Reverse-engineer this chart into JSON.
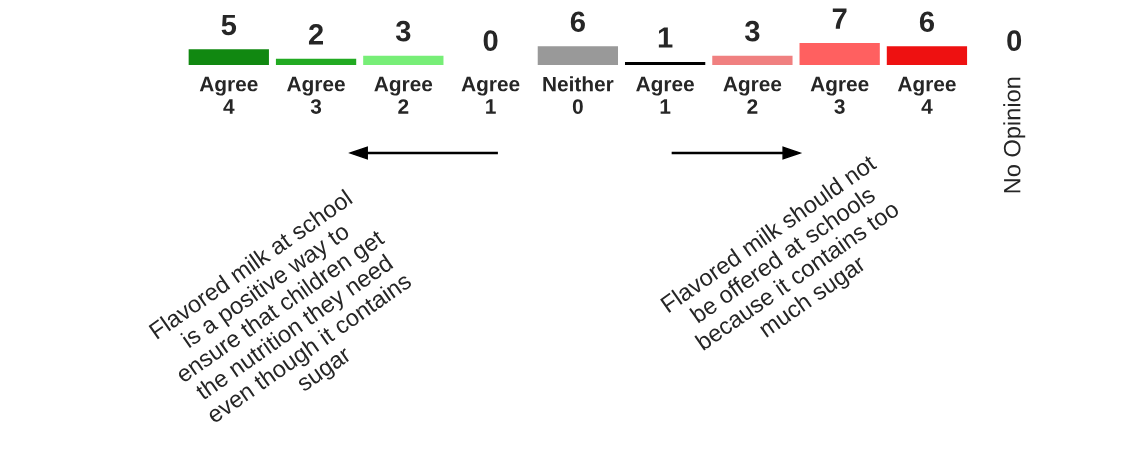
{
  "chart_data": {
    "type": "bar",
    "categories": [
      "Agree\n4",
      "Agree\n3",
      "Agree\n2",
      "Agree\n1",
      "Neither\n0",
      "Agree\n1",
      "Agree\n2",
      "Agree\n3",
      "Agree\n4",
      "No Opinion"
    ],
    "values": [
      5,
      2,
      3,
      0,
      6,
      1,
      3,
      7,
      6,
      0
    ],
    "colors": [
      "#118811",
      "#22aa22",
      "#77ee77",
      "#66cc66",
      "#999999",
      "#000000",
      "#f08080",
      "#ff6060",
      "#ee1111",
      "#999999"
    ],
    "data_labels": true,
    "annotations": [
      "Flavored milk at school\nis a positive way to\nensure that children get\nthe nutrition they need\neven though it contains\nsugar",
      "Flavored milk should not\nbe offered at schools\nbecause it contains too\nmuch sugar"
    ]
  }
}
